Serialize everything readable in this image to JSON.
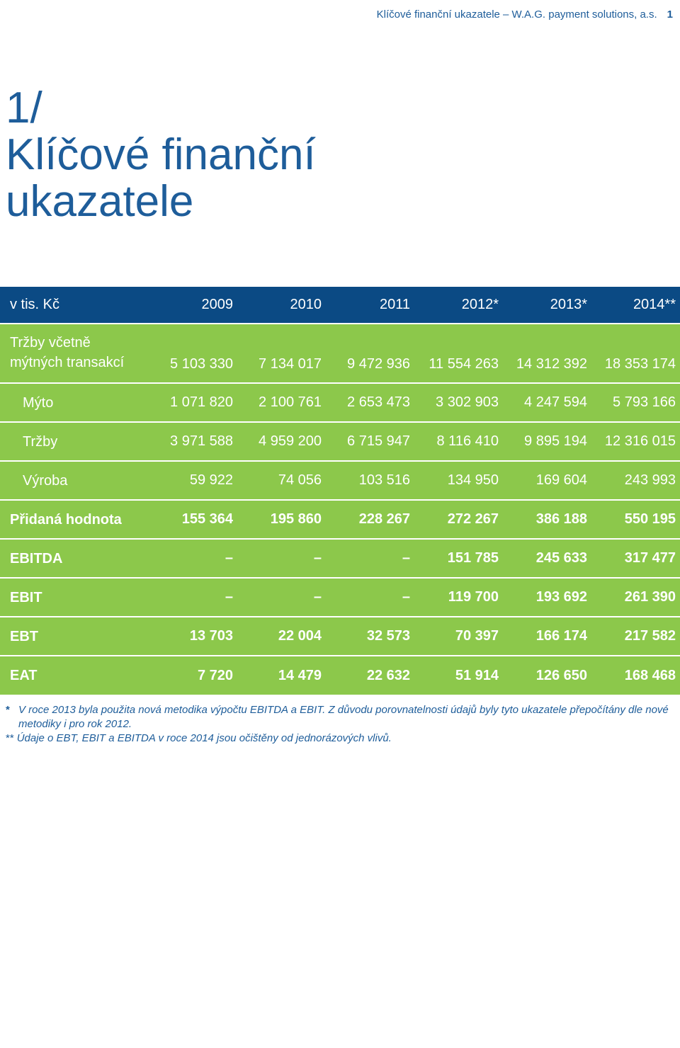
{
  "header": {
    "running_title": "Klíčové finanční ukazatele – W.A.G. payment solutions, a.s.",
    "page_number": "1"
  },
  "title": {
    "line1": "1/",
    "line2": "Klíčové finanční",
    "line3": "ukazatele"
  },
  "table": {
    "unit_label": "v tis. Kč",
    "years": [
      "2009",
      "2010",
      "2011",
      "2012*",
      "2013*",
      "2014**"
    ],
    "rows": [
      {
        "label": "Tržby včetně mýtných transakcí",
        "values": [
          "5 103 330",
          "7 134 017",
          "9 472 936",
          "11 554 263",
          "14 312 392",
          "18 353 174"
        ]
      },
      {
        "label": "Mýto",
        "values": [
          "1 071 820",
          "2 100 761",
          "2 653 473",
          "3 302 903",
          "4 247 594",
          "5 793 166"
        ]
      },
      {
        "label": "Tržby",
        "values": [
          "3 971 588",
          "4 959 200",
          "6 715 947",
          "8 116 410",
          "9 895 194",
          "12 316 015"
        ]
      },
      {
        "label": "Výroba",
        "values": [
          "59 922",
          "74 056",
          "103 516",
          "134 950",
          "169 604",
          "243 993"
        ]
      },
      {
        "label": "Přidaná hodnota",
        "values": [
          "155 364",
          "195 860",
          "228 267",
          "272 267",
          "386 188",
          "550 195"
        ]
      },
      {
        "label": "EBITDA",
        "values": [
          "–",
          "–",
          "–",
          "151 785",
          "245 633",
          "317 477"
        ]
      },
      {
        "label": "EBIT",
        "values": [
          "–",
          "–",
          "–",
          "119 700",
          "193 692",
          "261 390"
        ]
      },
      {
        "label": "EBT",
        "values": [
          "13 703",
          "22 004",
          "32 573",
          "70 397",
          "166 174",
          "217 582"
        ]
      },
      {
        "label": "EAT",
        "values": [
          "7 720",
          "14 479",
          "22 632",
          "51 914",
          "126 650",
          "168 468"
        ]
      }
    ]
  },
  "notes": [
    {
      "mark": "*",
      "text": "V roce 2013 byla použita nová metodika výpočtu EBITDA a EBIT. Z důvodu porovnatelnosti údajů byly tyto ukazatele přepočítány dle nové metodiky i pro rok 2012."
    },
    {
      "mark": "**",
      "text": "Údaje o EBT, EBIT a EBITDA v roce 2014 jsou očištěny od jednorázových vlivů."
    }
  ],
  "colors": {
    "brand_blue": "#1e5d9a",
    "header_blue": "#0b4a84",
    "row_green": "#8cc84b"
  }
}
